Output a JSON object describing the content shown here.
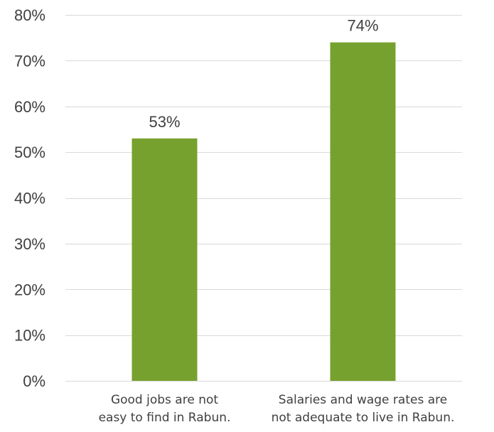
{
  "chart_data": {
    "type": "bar",
    "categories": [
      [
        "Good jobs are not",
        "easy to find in Rabun."
      ],
      [
        "Salaries and wage rates are",
        "not adequate to live in Rabun."
      ]
    ],
    "values": [
      53,
      74
    ],
    "data_labels": [
      "53%",
      "74%"
    ],
    "ylim": [
      0,
      80
    ],
    "y_ticks": [
      0,
      10,
      20,
      30,
      40,
      50,
      60,
      70,
      80
    ],
    "y_tick_labels": [
      "0%",
      "10%",
      "20%",
      "30%",
      "40%",
      "50%",
      "60%",
      "70%",
      "80%"
    ],
    "title": "",
    "xlabel": "",
    "ylabel": "",
    "grid": true,
    "legend": "none",
    "bar_color": "#77a12e",
    "gridline_color": "#d9d9d9",
    "text_color": "#404040"
  }
}
